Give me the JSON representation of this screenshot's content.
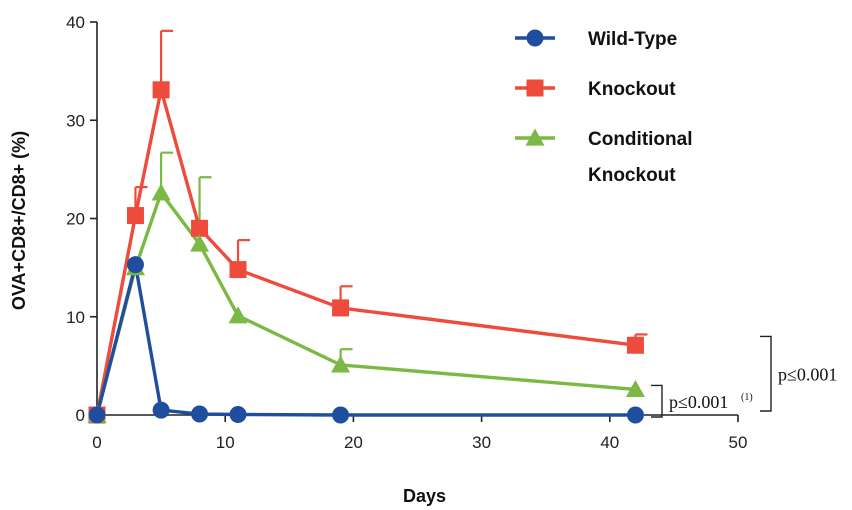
{
  "chart_data": {
    "type": "line",
    "title": "",
    "xlabel": "Days",
    "ylabel": "OVA+CD8+/CD8+ (%)",
    "xlim": [
      0,
      50
    ],
    "ylim": [
      0,
      40
    ],
    "xticks": [
      0,
      10,
      20,
      30,
      40,
      50
    ],
    "yticks": [
      0,
      10,
      20,
      30,
      40
    ],
    "grid": false,
    "legend_position": "top-right",
    "series": [
      {
        "name": "Wild-Type",
        "color": "#1f4e9e",
        "marker": "circle",
        "x": [
          0,
          3,
          5,
          8,
          11,
          19,
          42
        ],
        "y": [
          0,
          15.3,
          0.5,
          0.1,
          0.05,
          0,
          0
        ],
        "error_up": [
          0,
          0,
          0,
          0,
          0,
          0,
          0
        ]
      },
      {
        "name": "Knockout",
        "color": "#ee4b3c",
        "marker": "square",
        "x": [
          0,
          3,
          5,
          8,
          11,
          19,
          42
        ],
        "y": [
          0,
          20.3,
          33.1,
          19.0,
          14.8,
          10.9,
          7.1
        ],
        "error_up": [
          0,
          2.9,
          6.0,
          0,
          3.0,
          2.2,
          1.1
        ]
      },
      {
        "name": "Conditional Knockout",
        "legend_lines": [
          "Conditional",
          "Knockout"
        ],
        "color": "#7cb944",
        "marker": "triangle",
        "x": [
          0,
          3,
          5,
          8,
          11,
          19,
          42
        ],
        "y": [
          0,
          15.0,
          22.6,
          17.4,
          10.1,
          5.1,
          2.6
        ],
        "error_up": [
          0,
          0,
          4.1,
          6.8,
          0,
          1.6,
          0
        ]
      }
    ],
    "annotations": [
      {
        "text": "p≤0.001",
        "superscript": "(1)"
      },
      {
        "text": "p≤0.001",
        "superscript": ""
      }
    ]
  }
}
